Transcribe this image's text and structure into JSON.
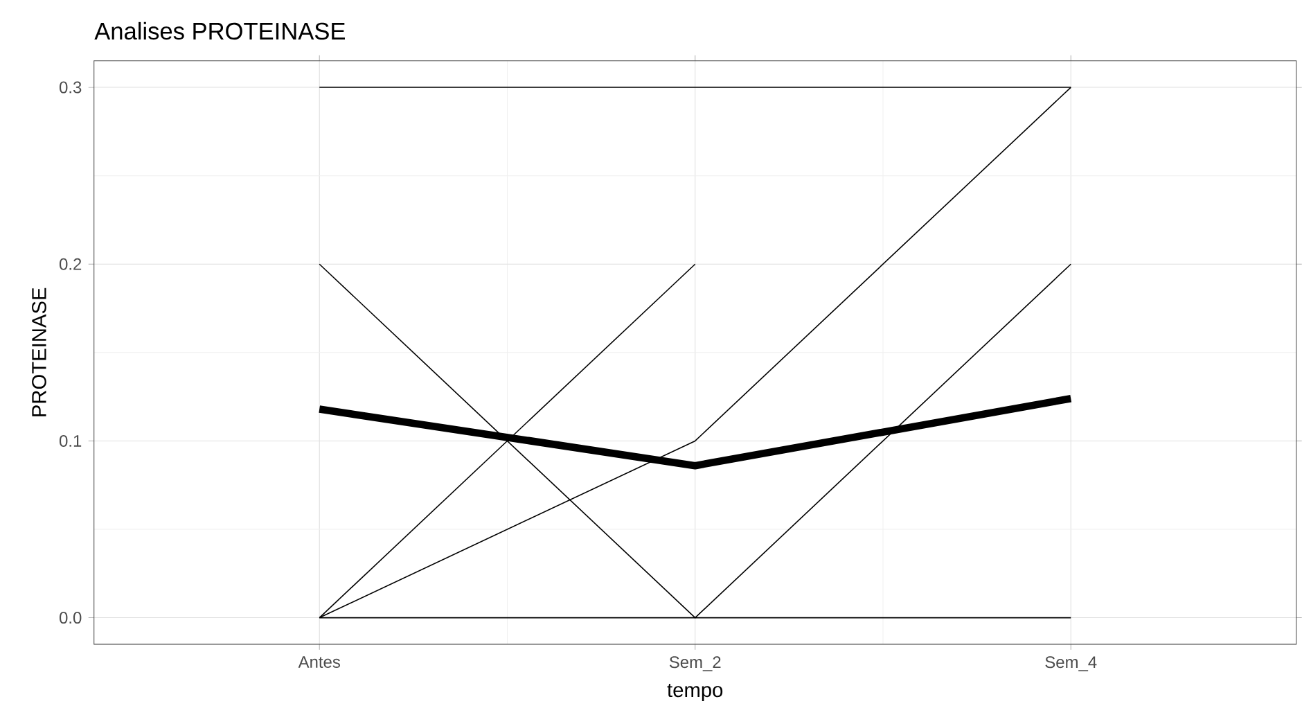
{
  "chart_data": {
    "type": "line",
    "title": "Analises PROTEINASE",
    "xlabel": "tempo",
    "ylabel": "PROTEINASE",
    "categories": [
      "Antes",
      "Sem_2",
      "Sem_4"
    ],
    "series": [
      {
        "color": "#000000",
        "values": [
          0.3,
          0.3,
          0.3
        ]
      },
      {
        "color": "#000000",
        "values": [
          0,
          0,
          0
        ]
      },
      {
        "color": "#000000",
        "values": [
          0.2,
          0,
          0.2
        ]
      },
      {
        "color": "#000000",
        "values": [
          0,
          0.2,
          null
        ]
      },
      {
        "color": "#000000",
        "values": [
          0,
          0.1,
          0.3
        ]
      },
      {
        "color": "#000000",
        "values": [
          0.118,
          0.086,
          0.124
        ]
      }
    ],
    "ylim": [
      -0.015,
      0.315
    ],
    "yticks": [
      {
        "value": 0,
        "label": "0.0"
      },
      {
        "value": 0.1,
        "label": "0.1"
      },
      {
        "value": 0.2,
        "label": "0.2"
      },
      {
        "value": 0.3,
        "label": "0.3"
      }
    ],
    "grid": true,
    "marker": "none",
    "line_style": "solid"
  }
}
